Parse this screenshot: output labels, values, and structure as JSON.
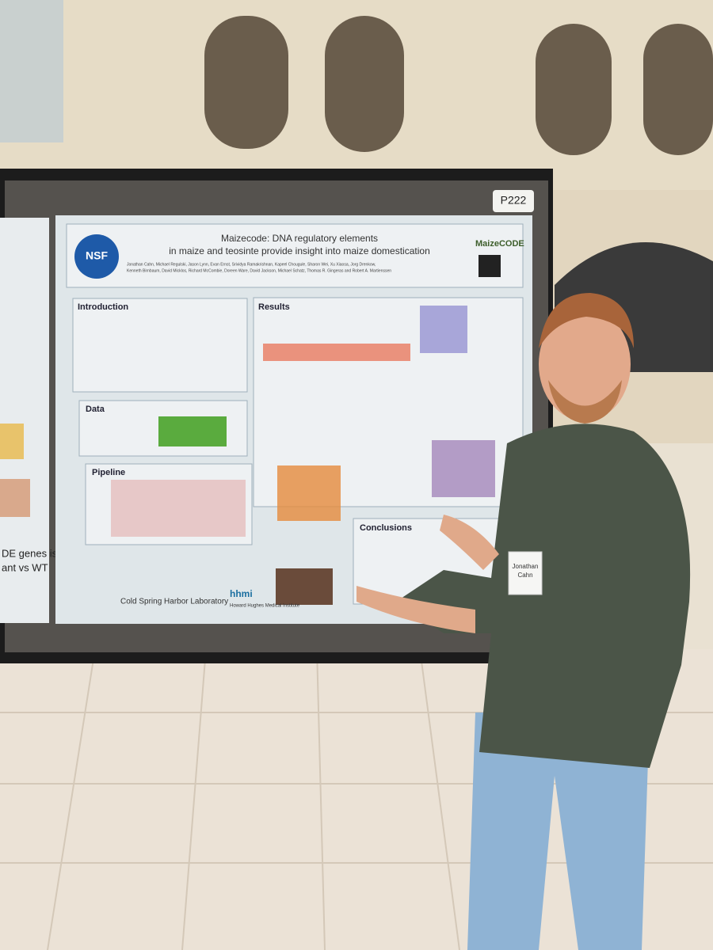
{
  "board_label": "P222",
  "poster": {
    "title_line1": "Maizecode: DNA regulatory elements",
    "title_line2": "in maize and teosinte provide insight into maize domestication",
    "authors_line1": "Jonathan Cahn, Michael Regulski, Jason Lynn, Evan Ernst, Srividya Ramakrishnan, Kapeel Chougule, Sharon Wei, Xu Xiaosa, Jorg Drenkow,",
    "authors_line2": "Kenneth Birnbaum, David Micklos, Richard McCombie, Doreen Ware, David Jackson, Michael Schatz, Thomas R. Gingeras and Robert A. Martienssen",
    "logo_left": "NSF",
    "logo_right": "MaizeCODE",
    "sections": {
      "introduction": "Introduction",
      "data": "Data",
      "pipeline": "Pipeline",
      "results": "Results",
      "conclusions": "Conclusions"
    },
    "footer_left": "Cold Spring Harbor Laboratory",
    "footer_right": "hhmi",
    "footer_right_sub": "Howard Hughes Medical Institute"
  },
  "left_poster_fragment": [
    "DE genes is",
    "ant vs WT"
  ],
  "badge": {
    "name_line1": "Jonathan",
    "name_line2": "Cahn"
  }
}
